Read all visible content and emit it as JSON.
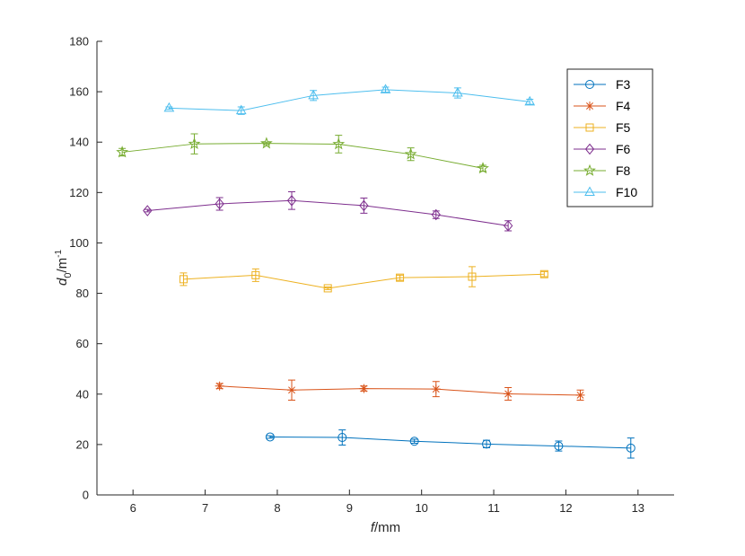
{
  "chart_data": {
    "type": "line",
    "title": "",
    "xlabel": {
      "var": "f",
      "unit": "/mm"
    },
    "ylabel": {
      "var": "d",
      "sub": "0",
      "unit": "/m",
      "sup": "-1"
    },
    "xlim": [
      5.5,
      13.5
    ],
    "ylim": [
      0,
      180
    ],
    "xticks": [
      6,
      7,
      8,
      9,
      10,
      11,
      12,
      13
    ],
    "yticks": [
      0,
      20,
      40,
      60,
      80,
      100,
      120,
      140,
      160,
      180
    ],
    "grid": false,
    "legend": "top-right",
    "series": [
      {
        "name": "F3",
        "color": "#0072BD",
        "marker": "circle",
        "x": [
          7.9,
          8.9,
          9.9,
          10.9,
          11.9,
          12.9
        ],
        "y": [
          23,
          22.8,
          21.3,
          20.2,
          19.4,
          18.6
        ],
        "err": [
          0.5,
          3,
          0.8,
          1.5,
          2,
          4
        ]
      },
      {
        "name": "F4",
        "color": "#D95319",
        "marker": "asterisk",
        "x": [
          7.2,
          8.2,
          9.2,
          10.2,
          11.2,
          12.2
        ],
        "y": [
          43.2,
          41.6,
          42.2,
          42,
          40.1,
          39.6
        ],
        "err": [
          1,
          4,
          1,
          3,
          2.5,
          2
        ]
      },
      {
        "name": "F5",
        "color": "#EDB120",
        "marker": "square",
        "x": [
          6.7,
          7.7,
          8.7,
          9.7,
          10.7,
          11.7
        ],
        "y": [
          85.6,
          87.2,
          82,
          86.2,
          86.6,
          87.6
        ],
        "err": [
          2.5,
          2.5,
          0.5,
          1,
          4,
          1
        ]
      },
      {
        "name": "F6",
        "color": "#7E2F8E",
        "marker": "diamond",
        "x": [
          6.2,
          7.2,
          8.2,
          9.2,
          10.2,
          11.2
        ],
        "y": [
          112.8,
          115.5,
          116.8,
          114.8,
          111.2,
          106.8
        ],
        "err": [
          0.5,
          2.5,
          3.5,
          3,
          1.5,
          2
        ]
      },
      {
        "name": "F8",
        "color": "#77AC30",
        "marker": "pentagram",
        "x": [
          5.85,
          6.85,
          7.85,
          8.85,
          9.85,
          10.85
        ],
        "y": [
          136,
          139.3,
          139.5,
          139.2,
          135.2,
          129.6
        ],
        "err": [
          1.5,
          4,
          0.5,
          3.5,
          2.5,
          1.2
        ]
      },
      {
        "name": "F10",
        "color": "#4DBEEE",
        "marker": "triangle",
        "x": [
          6.5,
          7.5,
          8.5,
          9.5,
          10.5,
          11.5
        ],
        "y": [
          153.5,
          152.5,
          158.5,
          160.8,
          159.5,
          156
        ],
        "err": [
          0.5,
          1.5,
          2,
          1,
          2,
          1
        ]
      }
    ]
  }
}
